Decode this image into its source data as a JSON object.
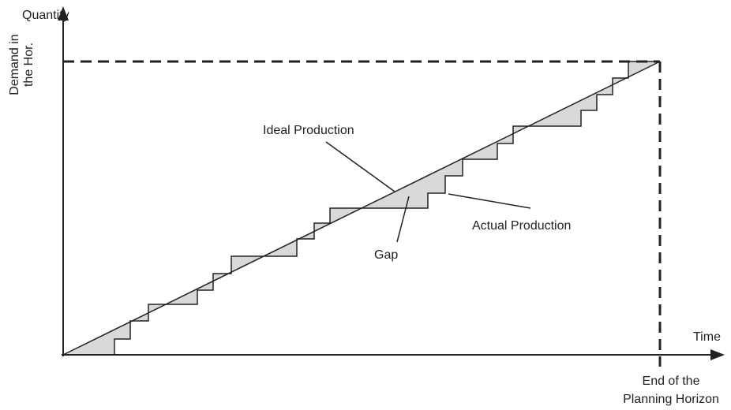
{
  "labels": {
    "y_axis": "Quantity",
    "x_axis": "Time",
    "demand_line1": "Demand in",
    "demand_line2": "the Hor.",
    "horizon_line1": "End of the",
    "horizon_line2": "Planning Horizon",
    "ideal": "Ideal Production",
    "actual": "Actual Production",
    "gap": "Gap"
  },
  "colors": {
    "line": "#222222",
    "gap_fill": "#d9d9d9",
    "background": "#ffffff"
  }
}
